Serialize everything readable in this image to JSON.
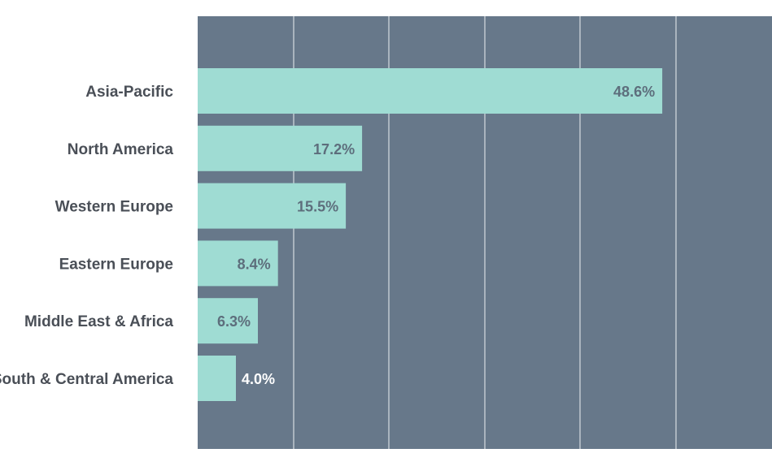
{
  "chart_data": {
    "type": "bar",
    "orientation": "horizontal",
    "categories": [
      "Asia-Pacific",
      "North America",
      "Western Europe",
      "Eastern Europe",
      "Middle East & Africa",
      "South & Central America"
    ],
    "values": [
      48.6,
      17.2,
      15.5,
      8.4,
      6.3,
      4.0
    ],
    "value_labels": [
      "48.6%",
      "17.2%",
      "15.5%",
      "8.4%",
      "6.3%",
      "4.0%"
    ],
    "xlim": [
      0,
      60
    ],
    "grid": true,
    "legend": "none",
    "colors": {
      "plot_background": "#67788a",
      "bar": "#9fdcd3",
      "gridline": "#d5dbe1",
      "category_text": "#4a4f57",
      "value_text_inside": "#5d6e7c",
      "value_text_outside": "#ffffff"
    }
  }
}
